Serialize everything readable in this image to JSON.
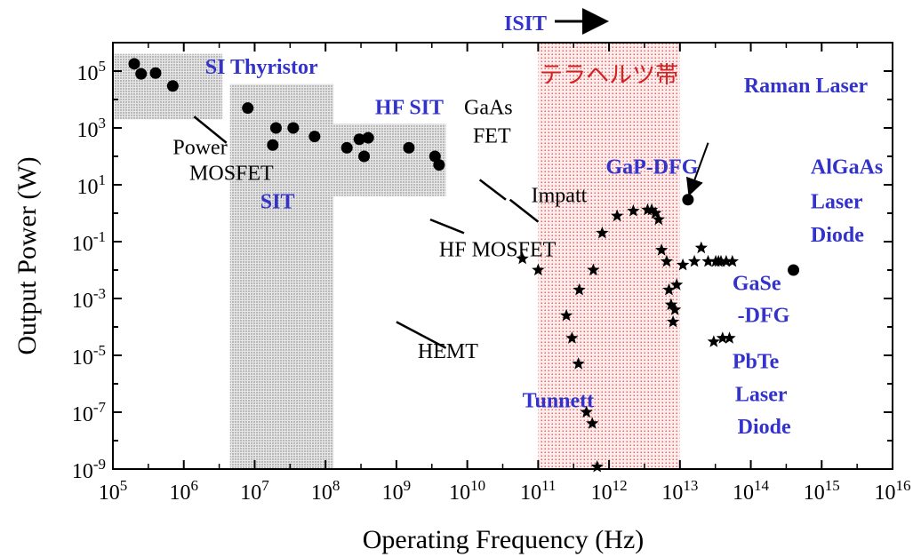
{
  "chart_data": {
    "type": "scatter",
    "xlabel": "Operating Frequency (Hz)",
    "ylabel": "Output Power (W)",
    "x_scale": "log",
    "y_scale": "log",
    "xlim": [
      100000,
      10000000000000000
    ],
    "ylim": [
      1e-09,
      1000000
    ],
    "x_ticks": [
      {
        "base": "10",
        "exp": "5"
      },
      {
        "base": "10",
        "exp": "6"
      },
      {
        "base": "10",
        "exp": "7"
      },
      {
        "base": "10",
        "exp": "8"
      },
      {
        "base": "10",
        "exp": "9"
      },
      {
        "base": "10",
        "exp": "10"
      },
      {
        "base": "10",
        "exp": "11"
      },
      {
        "base": "10",
        "exp": "12"
      },
      {
        "base": "10",
        "exp": "13"
      },
      {
        "base": "10",
        "exp": "14"
      },
      {
        "base": "10",
        "exp": "15"
      },
      {
        "base": "10",
        "exp": "16"
      }
    ],
    "y_ticks": [
      {
        "base": "10",
        "exp": "-9"
      },
      {
        "base": "10",
        "exp": "-7"
      },
      {
        "base": "10",
        "exp": "-5"
      },
      {
        "base": "10",
        "exp": "-3"
      },
      {
        "base": "10",
        "exp": "-1"
      },
      {
        "base": "10",
        "exp": "1"
      },
      {
        "base": "10",
        "exp": "3"
      },
      {
        "base": "10",
        "exp": "5"
      }
    ],
    "grid": false,
    "regions": [
      {
        "x0": 100000,
        "x1": 3500000,
        "y0": 2000,
        "y1": 400000
      },
      {
        "x0": 4500000,
        "x1": 130000000,
        "y0": 1e-09,
        "y1": 35000
      },
      {
        "x0": 130000000,
        "x1": 5000000000,
        "y0": 4,
        "y1": 1400
      }
    ],
    "band": {
      "label": "テラヘルツ帯",
      "x0": 100000000000,
      "x1": 10000000000000,
      "color": "#d42020"
    },
    "isit_label": "ISIT",
    "circles": [
      {
        "x": 200000,
        "y": 180000
      },
      {
        "x": 250000,
        "y": 80000
      },
      {
        "x": 400000,
        "y": 85000
      },
      {
        "x": 700000,
        "y": 30000
      },
      {
        "x": 8000000,
        "y": 5000
      },
      {
        "x": 18000000,
        "y": 250
      },
      {
        "x": 20000000,
        "y": 1000
      },
      {
        "x": 35000000,
        "y": 1000
      },
      {
        "x": 70000000,
        "y": 500
      },
      {
        "x": 200000000,
        "y": 200
      },
      {
        "x": 300000000,
        "y": 400
      },
      {
        "x": 350000000,
        "y": 100
      },
      {
        "x": 400000000,
        "y": 450
      },
      {
        "x": 1500000000,
        "y": 200
      },
      {
        "x": 3500000000,
        "y": 100
      },
      {
        "x": 4000000000,
        "y": 50
      },
      {
        "x": 13000000000000,
        "y": 3
      },
      {
        "x": 400000000000000,
        "y": 0.01
      }
    ],
    "stars": [
      {
        "x": 60000000000,
        "y": 0.025
      },
      {
        "x": 100000000000,
        "y": 0.01
      },
      {
        "x": 250000000000,
        "y": 0.00025
      },
      {
        "x": 300000000000,
        "y": 4e-05
      },
      {
        "x": 370000000000,
        "y": 5e-06
      },
      {
        "x": 380000000000,
        "y": 0.002
      },
      {
        "x": 480000000000,
        "y": 1e-07
      },
      {
        "x": 580000000000,
        "y": 4e-08
      },
      {
        "x": 600000000000,
        "y": 0.01
      },
      {
        "x": 680000000000,
        "y": 1.2e-09
      },
      {
        "x": 800000000000,
        "y": 0.2
      },
      {
        "x": 1300000000000,
        "y": 0.8
      },
      {
        "x": 2200000000000,
        "y": 1.2
      },
      {
        "x": 3500000000000,
        "y": 1.3
      },
      {
        "x": 4000000000000,
        "y": 1.3
      },
      {
        "x": 4500000000000,
        "y": 1
      },
      {
        "x": 5000000000000,
        "y": 0.6
      },
      {
        "x": 5500000000000,
        "y": 0.05
      },
      {
        "x": 6500000000000,
        "y": 0.02
      },
      {
        "x": 7000000000000,
        "y": 0.002
      },
      {
        "x": 7500000000000,
        "y": 0.0006
      },
      {
        "x": 8000000000000,
        "y": 0.00015
      },
      {
        "x": 8500000000000,
        "y": 0.0004
      },
      {
        "x": 9000000000000,
        "y": 0.003
      },
      {
        "x": 11000000000000,
        "y": 0.015
      },
      {
        "x": 16000000000000,
        "y": 0.02
      },
      {
        "x": 20000000000000,
        "y": 0.06
      },
      {
        "x": 25000000000000,
        "y": 0.02
      },
      {
        "x": 30000000000000,
        "y": 3e-05
      },
      {
        "x": 32000000000000,
        "y": 0.02
      },
      {
        "x": 35000000000000,
        "y": 0.02
      },
      {
        "x": 38000000000000,
        "y": 0.02
      },
      {
        "x": 40000000000000,
        "y": 4e-05
      },
      {
        "x": 45000000000000,
        "y": 0.02
      },
      {
        "x": 50000000000000,
        "y": 4e-05
      },
      {
        "x": 55000000000000,
        "y": 0.02
      }
    ],
    "trend_lines": [
      {
        "x0": 1400000,
        "y0": 300,
        "x1": 4000000,
        "y1": 300,
        "ya": 2500,
        "yb": 300
      },
      {
        "x0": 15000000000,
        "x1": 35000000000,
        "ya": 15,
        "yb": 3
      },
      {
        "x0": 40000000000,
        "x1": 100000000000,
        "ya": 3,
        "yb": 0.5
      },
      {
        "x0": 3000000000,
        "x1": 9000000000,
        "ya": 0.6,
        "yb": 0.2
      },
      {
        "x0": 1000000000,
        "x1": 5000000000,
        "ya": 0.00015,
        "yb": 1.8e-05
      }
    ],
    "annotations": [
      {
        "text": "SI Thyristor",
        "style": "blue",
        "x": 2000000,
        "y": 80000
      },
      {
        "text": "Power",
        "style": "black",
        "x": 700000,
        "y": 120
      },
      {
        "text": "MOSFET",
        "style": "black",
        "x": 1200000,
        "y": 15
      },
      {
        "text": "SIT",
        "style": "blue",
        "x": 12000000,
        "y": 1.5
      },
      {
        "text": "HF SIT",
        "style": "blue",
        "x": 500000000,
        "y": 3000
      },
      {
        "text": "GaAs",
        "style": "black",
        "x": 9000000000,
        "y": 3000
      },
      {
        "text": "FET",
        "style": "black",
        "x": 12000000000,
        "y": 300
      },
      {
        "text": "GaP-DFG",
        "style": "blue",
        "x": 900000000000,
        "y": 25
      },
      {
        "text": "Impatt",
        "style": "black",
        "x": 80000000000,
        "y": 2.5
      },
      {
        "text": "HF MOSFET",
        "style": "black",
        "x": 4000000000,
        "y": 0.03
      },
      {
        "text": "HEMT",
        "style": "black",
        "x": 2000000000,
        "y": 8e-06
      },
      {
        "text": "Tunnett",
        "style": "blue",
        "x": 60000000000,
        "y": 1.5e-07
      },
      {
        "text": "Raman Laser",
        "style": "blue",
        "x": 80000000000000,
        "y": 18000
      },
      {
        "text": "AlGaAs",
        "style": "blue",
        "x": 700000000000000,
        "y": 25
      },
      {
        "text": "Laser",
        "style": "blue",
        "x": 700000000000000,
        "y": 1.5
      },
      {
        "text": "Diode",
        "style": "blue",
        "x": 700000000000000,
        "y": 0.1
      },
      {
        "text": "GaSe",
        "style": "blue",
        "x": 55000000000000,
        "y": 0.002
      },
      {
        "text": "-DFG",
        "style": "blue",
        "x": 65000000000000,
        "y": 0.00015
      },
      {
        "text": "PbTe",
        "style": "blue",
        "x": 55000000000000,
        "y": 3.5e-06
      },
      {
        "text": "Laser",
        "style": "blue",
        "x": 60000000000000,
        "y": 2.5e-07
      },
      {
        "text": "Diode",
        "style": "blue",
        "x": 65000000000000,
        "y": 1.8e-08
      }
    ],
    "raman_arrow": {
      "x0": 25000000000000,
      "y0": 300,
      "x1": 13500000000000,
      "y1": 4.5
    }
  }
}
